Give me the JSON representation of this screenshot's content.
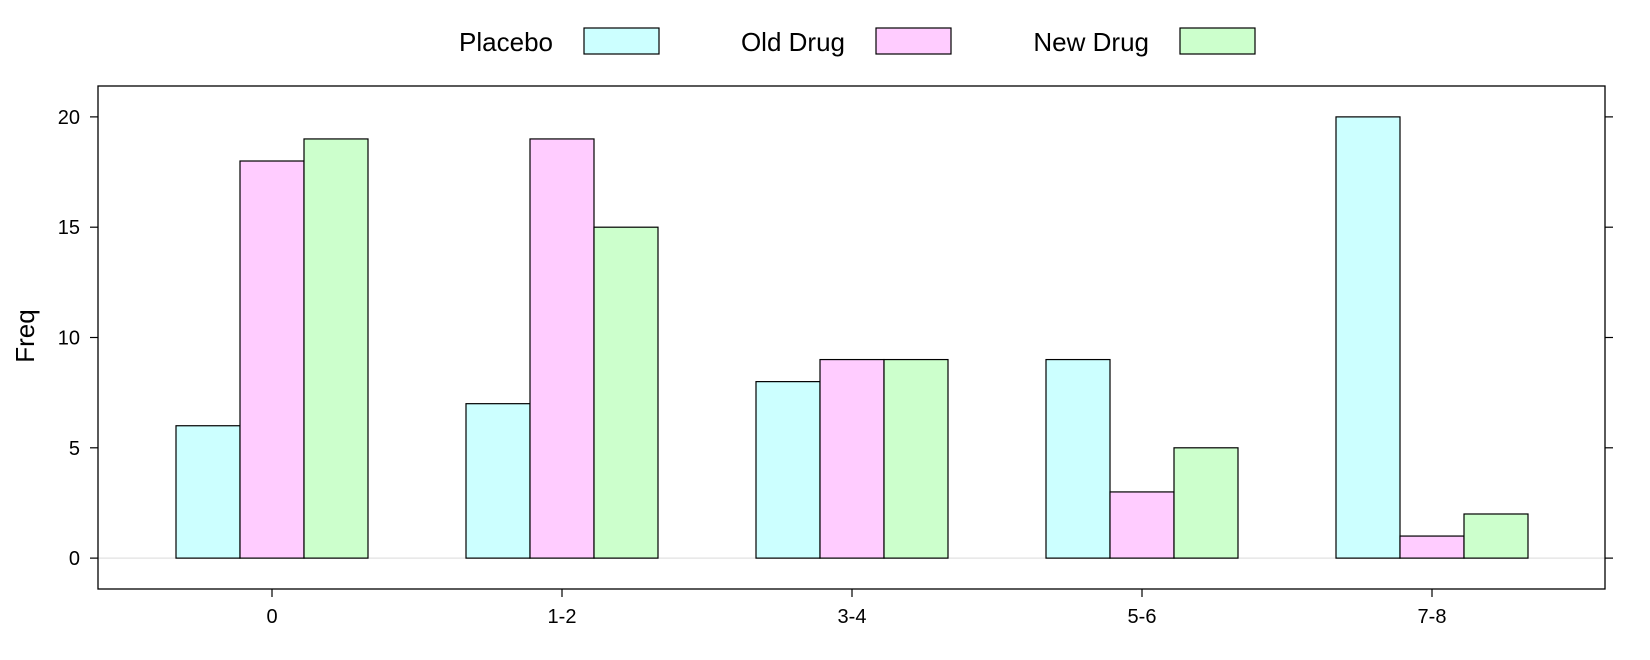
{
  "chart_data": {
    "type": "bar",
    "categories": [
      "0",
      "1-2",
      "3-4",
      "5-6",
      "7-8"
    ],
    "series": [
      {
        "name": "Placebo",
        "values": [
          6,
          7,
          8,
          9,
          20
        ],
        "color": "#ccffff"
      },
      {
        "name": "Old Drug",
        "values": [
          18,
          19,
          9,
          3,
          1
        ],
        "color": "#ffccff"
      },
      {
        "name": "New Drug",
        "values": [
          19,
          15,
          9,
          5,
          2
        ],
        "color": "#ccffcc"
      }
    ],
    "xlabel": "",
    "ylabel": "Freq",
    "ylim": [
      -1.4,
      21.4
    ],
    "yticks": [
      0,
      5,
      10,
      15,
      20
    ],
    "legend_position": "top",
    "grid": false,
    "reference_line_color": "#e6e6e6"
  }
}
